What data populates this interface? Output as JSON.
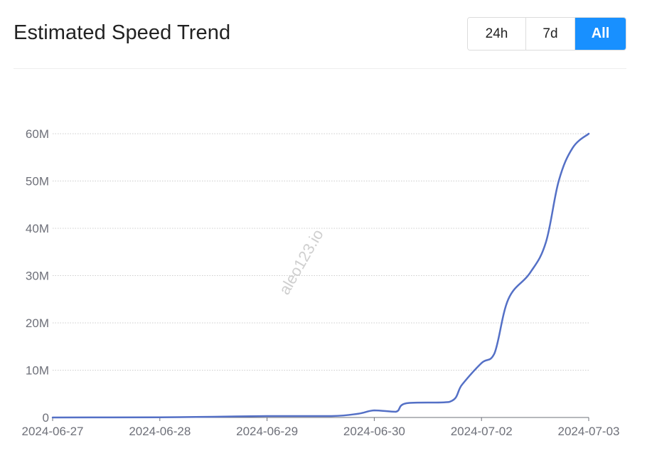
{
  "header": {
    "title": "Estimated Speed Trend",
    "ranges": [
      "24h",
      "7d",
      "All"
    ],
    "active_range": "All"
  },
  "watermark": "aleo123.io",
  "colors": {
    "line": "#5470c6",
    "accent": "#1890ff",
    "grid": "#cccccc",
    "axis": "#6e7079"
  },
  "chart_data": {
    "type": "line",
    "title": "Estimated Speed Trend",
    "xlabel": "",
    "ylabel": "",
    "x_ticks": [
      "2024-06-27",
      "2024-06-28",
      "2024-06-29",
      "2024-06-30",
      "2024-07-02",
      "2024-07-03"
    ],
    "y_ticks": [
      "0",
      "10M",
      "20M",
      "30M",
      "40M",
      "50M",
      "60M"
    ],
    "ylim": [
      0,
      60000000
    ],
    "grid": true,
    "grid_style": "dotted horizontal",
    "series": [
      {
        "color": "#5470c6",
        "points": [
          [
            0,
            0
          ],
          [
            1.0,
            50000
          ],
          [
            1.5,
            150000
          ],
          [
            2.0,
            300000
          ],
          [
            2.6,
            300000
          ],
          [
            2.85,
            800000
          ],
          [
            3.0,
            1500000
          ],
          [
            3.2,
            1200000
          ],
          [
            3.3,
            3000000
          ],
          [
            3.7,
            3300000
          ],
          [
            3.82,
            7000000
          ],
          [
            4.0,
            11500000
          ],
          [
            4.12,
            13500000
          ],
          [
            4.25,
            25000000
          ],
          [
            4.45,
            30500000
          ],
          [
            4.6,
            37000000
          ],
          [
            4.72,
            50000000
          ],
          [
            4.85,
            57000000
          ],
          [
            5.0,
            60000000
          ]
        ]
      }
    ]
  }
}
